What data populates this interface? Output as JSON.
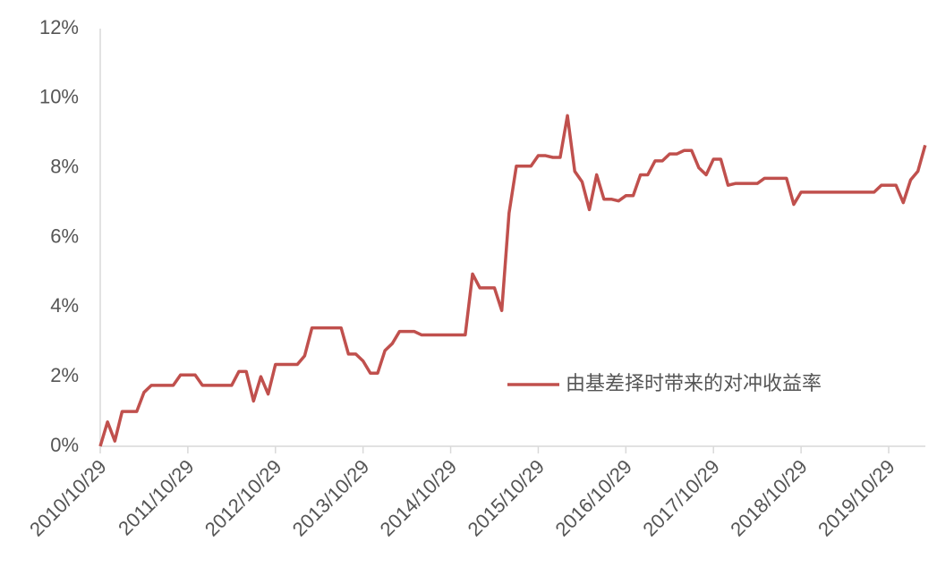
{
  "chart_data": {
    "type": "line",
    "categories": [
      "2010/10/29",
      null,
      null,
      null,
      null,
      null,
      null,
      null,
      null,
      null,
      null,
      null,
      "2011/10/29",
      null,
      null,
      null,
      null,
      null,
      null,
      null,
      null,
      null,
      null,
      null,
      "2012/10/29",
      null,
      null,
      null,
      null,
      null,
      null,
      null,
      null,
      null,
      null,
      null,
      "2013/10/29",
      null,
      null,
      null,
      null,
      null,
      null,
      null,
      null,
      null,
      null,
      null,
      "2014/10/29",
      null,
      null,
      null,
      null,
      null,
      null,
      null,
      null,
      null,
      null,
      null,
      "2015/10/29",
      null,
      null,
      null,
      null,
      null,
      null,
      null,
      null,
      null,
      null,
      null,
      "2016/10/29",
      null,
      null,
      null,
      null,
      null,
      null,
      null,
      null,
      null,
      null,
      null,
      "2017/10/29",
      null,
      null,
      null,
      null,
      null,
      null,
      null,
      null,
      null,
      null,
      null,
      "2018/10/29",
      null,
      null,
      null,
      null,
      null,
      null,
      null,
      null,
      null,
      null,
      null,
      "2019/10/29",
      null,
      null,
      null,
      null,
      null
    ],
    "series": [
      {
        "name": "由基差择时带来的对冲收益率",
        "color": "#c0504d",
        "values": [
          0,
          0.7,
          0.15,
          1.0,
          1.0,
          1.0,
          1.55,
          1.75,
          1.75,
          1.75,
          1.75,
          2.05,
          2.05,
          2.05,
          1.75,
          1.75,
          1.75,
          1.75,
          1.75,
          2.15,
          2.15,
          1.3,
          2.0,
          1.5,
          2.35,
          2.35,
          2.35,
          2.35,
          2.6,
          3.4,
          3.4,
          3.4,
          3.4,
          3.4,
          2.65,
          2.65,
          2.45,
          2.1,
          2.1,
          2.75,
          2.95,
          3.3,
          3.3,
          3.3,
          3.2,
          3.2,
          3.2,
          3.2,
          3.2,
          3.2,
          3.2,
          4.95,
          4.55,
          4.55,
          4.55,
          3.9,
          6.7,
          8.05,
          8.05,
          8.05,
          8.35,
          8.35,
          8.3,
          8.3,
          9.5,
          7.9,
          7.6,
          6.8,
          7.8,
          7.1,
          7.1,
          7.05,
          7.2,
          7.2,
          7.8,
          7.8,
          8.2,
          8.2,
          8.4,
          8.4,
          8.5,
          8.5,
          8.0,
          7.8,
          8.25,
          8.25,
          7.5,
          7.55,
          7.55,
          7.55,
          7.55,
          7.7,
          7.7,
          7.7,
          7.7,
          6.95,
          7.3,
          7.3,
          7.3,
          7.3,
          7.3,
          7.3,
          7.3,
          7.3,
          7.3,
          7.3,
          7.3,
          7.5,
          7.5,
          7.5,
          7.0,
          7.65,
          7.9,
          8.65
        ]
      }
    ],
    "ylim": [
      0,
      12
    ],
    "yticks": [
      {
        "value": 0,
        "label": "0%"
      },
      {
        "value": 2,
        "label": "2%"
      },
      {
        "value": 4,
        "label": "4%"
      },
      {
        "value": 6,
        "label": "6%"
      },
      {
        "value": 8,
        "label": "8%"
      },
      {
        "value": 10,
        "label": "10%"
      },
      {
        "value": 12,
        "label": "12%"
      }
    ],
    "legend": "right"
  }
}
